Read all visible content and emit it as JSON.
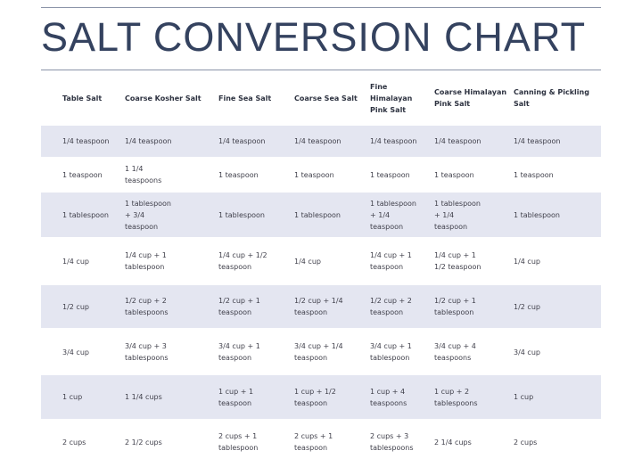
{
  "header": {
    "title": "SALT CONVERSION CHART"
  },
  "table": {
    "columns": [
      "Table Salt",
      "Coarse Kosher Salt",
      "Fine Sea Salt",
      "Coarse Sea Salt",
      "Fine Himalayan Pink Salt",
      "Coarse Himalayan Pink Salt",
      "Canning & Pickling Salt"
    ],
    "rows": [
      [
        "1/4 teaspoon",
        "1/4 teaspoon",
        "1/4 teaspoon",
        "1/4 teaspoon",
        "1/4 teaspoon",
        "1/4 teaspoon",
        "1/4 teaspoon"
      ],
      [
        "1 teaspoon",
        "1 1/4 teaspoons",
        "1 teaspoon",
        "1 teaspoon",
        "1 teaspoon",
        "1 teaspoon",
        "1 teaspoon"
      ],
      [
        "1 tablespoon",
        "1 tablespoon + 3/4 teaspoon",
        "1 tablespoon",
        "1 tablespoon",
        "1 tablespoon + 1/4 teaspoon",
        "1 tablespoon + 1/4 teaspoon",
        "1 tablespoon"
      ],
      [
        "1/4 cup",
        "1/4 cup + 1 tablespoon",
        "1/4 cup + 1/2 teaspoon",
        "1/4 cup",
        "1/4 cup + 1 teaspoon",
        "1/4 cup + 1 1/2 teaspoon",
        "1/4 cup"
      ],
      [
        "1/2 cup",
        "1/2 cup + 2 tablespoons",
        "1/2 cup + 1 teaspoon",
        "1/2 cup + 1/4 teaspoon",
        "1/2 cup + 2 teaspoon",
        "1/2 cup + 1 tablespoon",
        "1/2 cup"
      ],
      [
        "3/4 cup",
        "3/4 cup + 3 tablespoons",
        "3/4 cup + 1 teaspoon",
        "3/4 cup + 1/4 teaspoon",
        "3/4 cup + 1 tablespoon",
        "3/4 cup + 4 teaspoons",
        "3/4 cup"
      ],
      [
        "1 cup",
        "1 1/4 cups",
        "1 cup + 1 teaspoon",
        "1 cup + 1/2 teaspoon",
        "1 cup + 4 teaspoons",
        "1 cup + 2 tablespoons",
        "1 cup"
      ],
      [
        "2 cups",
        "2 1/2 cups",
        "2 cups + 1 tablespoon",
        "2 cups + 1 teaspoon",
        "2 cups + 3 tablespoons",
        "2 1/4 cups",
        "2 cups"
      ]
    ]
  }
}
